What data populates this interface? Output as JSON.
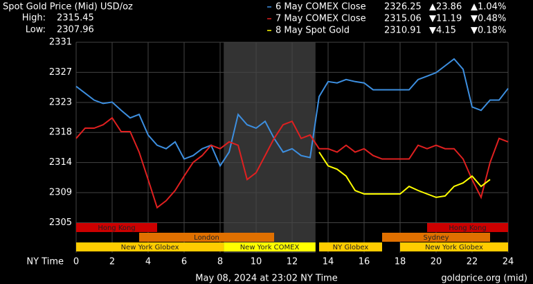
{
  "chart_data": {
    "type": "line",
    "title": "Spot Gold Price (Mid) USD/oz",
    "stats": [
      {
        "label": "High:",
        "value": 2315.45
      },
      {
        "label": "Low:",
        "value": 2307.96
      }
    ],
    "x_label": "NY Time",
    "footer": "May 08, 2024 at 23:02 NY Time",
    "source": "goldprice.org (mid)",
    "xlim": [
      0,
      24
    ],
    "xticks": [
      0,
      2,
      4,
      6,
      8,
      10,
      12,
      14,
      16,
      18,
      20,
      22,
      24
    ],
    "ylim": [
      2300.6,
      2331.34
    ],
    "yticks": [
      2305,
      {
        "value": 2309.39,
        "label": "2309"
      },
      {
        "value": 2313.78,
        "label": "2314"
      },
      {
        "value": 2318.17,
        "label": "2318"
      },
      {
        "value": 2322.56,
        "label": "2323"
      },
      {
        "value": 2326.95,
        "label": "2327"
      },
      {
        "value": 2331.34,
        "label": "2331"
      }
    ],
    "grid": true,
    "shaded": [
      8.2,
      13.3
    ],
    "x": [
      0,
      0.5,
      1,
      1.5,
      2,
      2.5,
      3,
      3.5,
      4,
      4.5,
      5,
      5.5,
      6,
      6.5,
      7,
      7.5,
      8,
      8.5,
      9,
      9.5,
      10,
      10.5,
      11,
      11.5,
      12,
      12.5,
      13,
      13.5,
      14,
      14.5,
      15,
      15.5,
      16,
      16.5,
      17,
      17.5,
      18,
      18.5,
      19,
      19.5,
      20,
      20.5,
      21,
      21.5,
      22,
      22.5,
      23,
      23.5,
      24
    ],
    "series": [
      {
        "name": "6 May COMEX Close",
        "color": "#3d8fe0",
        "last": 2326.25,
        "change": {
          "value": 23.86,
          "label": "▲23.86"
        },
        "change_pct": {
          "value": 1.04,
          "label": "▲1.04%"
        },
        "change_color": "#33cc33",
        "values": [
          2324.9,
          2323.9,
          2322.9,
          2322.4,
          2322.6,
          2321.4,
          2320.3,
          2320.8,
          2317.8,
          2316.3,
          2315.8,
          2316.8,
          2314.3,
          2314.8,
          2315.8,
          2316.3,
          2313.3,
          2315.3,
          2320.8,
          2319.3,
          2318.8,
          2319.8,
          2317.3,
          2315.3,
          2315.8,
          2314.8,
          2314.5,
          2323.4,
          2325.6,
          2325.4,
          2325.9,
          2325.6,
          2325.4,
          2324.4,
          2324.4,
          2324.4,
          2324.4,
          2324.4,
          2325.9,
          2326.4,
          2326.9,
          2327.9,
          2328.9,
          2327.4,
          2321.9,
          2321.4,
          2322.9,
          2322.9,
          2324.6
        ]
      },
      {
        "name": "7 May COMEX Close",
        "color": "#e02020",
        "last": 2315.06,
        "change": {
          "value": -11.19,
          "label": "▼11.19"
        },
        "change_pct": {
          "value": -0.48,
          "label": "▼0.48%"
        },
        "change_color": "#e02020",
        "values": [
          2317.3,
          2318.8,
          2318.8,
          2319.3,
          2320.3,
          2318.3,
          2318.3,
          2315.3,
          2311.3,
          2307.2,
          2308.2,
          2309.7,
          2311.8,
          2313.8,
          2314.8,
          2316.3,
          2315.8,
          2316.8,
          2316.3,
          2311.3,
          2312.3,
          2314.8,
          2317.3,
          2319.3,
          2319.8,
          2317.3,
          2317.8,
          2315.8,
          2315.8,
          2315.3,
          2316.3,
          2315.3,
          2315.8,
          2314.8,
          2314.3,
          2314.3,
          2314.3,
          2314.3,
          2316.3,
          2315.8,
          2316.3,
          2315.8,
          2315.8,
          2314.3,
          2311.3,
          2308.7,
          2313.8,
          2317.3,
          2316.8
        ]
      },
      {
        "name": "8 May Spot Gold",
        "color": "#ffff00",
        "last": 2310.91,
        "change": {
          "value": -4.15,
          "label": "▼4.15"
        },
        "change_pct": {
          "value": -0.18,
          "label": "▼0.18%"
        },
        "change_color": "#e02020",
        "values": [
          null,
          null,
          null,
          null,
          null,
          null,
          null,
          null,
          null,
          null,
          null,
          null,
          null,
          null,
          null,
          null,
          null,
          null,
          null,
          null,
          null,
          null,
          null,
          null,
          null,
          null,
          null,
          2315.3,
          2313.3,
          2312.8,
          2311.8,
          2309.7,
          2309.2,
          2309.2,
          2309.2,
          2309.2,
          2309.2,
          2310.3,
          2309.7,
          2309.2,
          2308.7,
          2308.9,
          2310.3,
          2310.8,
          2311.8,
          2310.3,
          2311.3,
          null,
          null
        ]
      }
    ],
    "sessions": [
      {
        "name": "Hong Kong",
        "start": 0,
        "end": 4.5,
        "row": 0,
        "color": "#cc0000"
      },
      {
        "name": "Hong Kong",
        "start": 19.5,
        "end": 24,
        "row": 0,
        "color": "#cc0000"
      },
      {
        "name": "London",
        "start": 3.5,
        "end": 11,
        "row": 1,
        "color": "#e07000"
      },
      {
        "name": "Sydney",
        "start": 17,
        "end": 23,
        "row": 1,
        "color": "#e07000"
      },
      {
        "name": "New York Globex",
        "start": 0,
        "end": 8.2,
        "row": 2,
        "color": "#ffcc00"
      },
      {
        "name": "New York COMEX",
        "start": 8.2,
        "end": 13.3,
        "row": 2,
        "color": "#ffff00"
      },
      {
        "name": "NY Globex",
        "start": 13.5,
        "end": 17,
        "row": 2,
        "color": "#ffcc00"
      },
      {
        "name": "New York Globex",
        "start": 18,
        "end": 24,
        "row": 2,
        "color": "#ffcc00"
      }
    ]
  }
}
